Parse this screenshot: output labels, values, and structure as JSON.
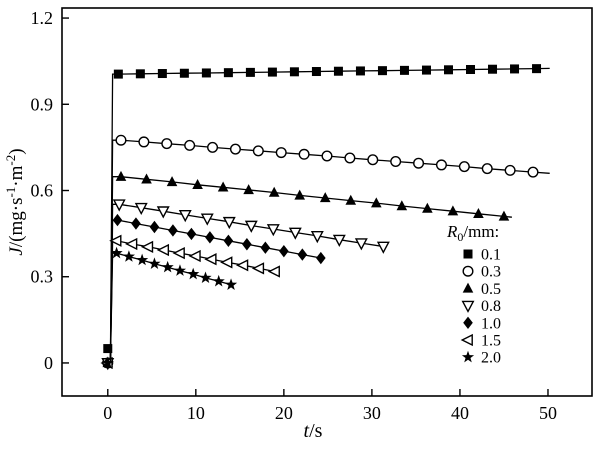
{
  "figure": {
    "background": "#ffffff",
    "axis_color": "#000000",
    "line_color": "#000000"
  },
  "chart_data": {
    "type": "line",
    "title": "",
    "xlabel": {
      "italic": "t",
      "rest": "/s"
    },
    "ylabel": {
      "italic": "J",
      "unit_open": "/(mg·s",
      "sup1": "-1",
      "unit_mid": "·m",
      "sup2": "-2",
      "unit_close": ")"
    },
    "xlim": [
      -5.2,
      55
    ],
    "ylim": [
      -0.115,
      1.235
    ],
    "xticks": [
      0,
      10,
      20,
      30,
      40,
      50
    ],
    "xtick_labels": [
      "0",
      "10",
      "20",
      "30",
      "40",
      "50"
    ],
    "yticks": [
      0,
      0.3,
      0.6,
      0.9,
      1.2
    ],
    "ytick_labels": [
      "0",
      "0.3",
      "0.6",
      "0.9",
      "1.2"
    ],
    "grid": false,
    "legend": {
      "title": {
        "italic": "R",
        "sub": "0",
        "rest": "/mm:"
      },
      "position": "lower-right-inside",
      "entries": [
        "0.1",
        "0.3",
        "0.5",
        "0.8",
        "1.0",
        "1.5",
        "2.0"
      ]
    },
    "series": [
      {
        "label": "0.1",
        "marker": "square",
        "filled": true,
        "origin": [
          0,
          0.05
        ],
        "rise_t": 0.3,
        "points": [
          [
            1.2,
            1.005
          ],
          [
            3.7,
            1.006
          ],
          [
            6.2,
            1.007
          ],
          [
            8.7,
            1.008
          ],
          [
            11.2,
            1.009
          ],
          [
            13.7,
            1.01
          ],
          [
            16.2,
            1.011
          ],
          [
            18.7,
            1.012
          ],
          [
            21.2,
            1.013
          ],
          [
            23.7,
            1.014
          ],
          [
            26.2,
            1.015
          ],
          [
            28.7,
            1.016
          ],
          [
            31.2,
            1.017
          ],
          [
            33.7,
            1.018
          ],
          [
            36.2,
            1.019
          ],
          [
            38.7,
            1.02
          ],
          [
            41.2,
            1.021
          ],
          [
            43.7,
            1.022
          ],
          [
            46.2,
            1.023
          ],
          [
            48.7,
            1.024
          ]
        ],
        "tail": [
          50.2,
          1.025
        ]
      },
      {
        "label": "0.3",
        "marker": "circle",
        "filled": false,
        "origin": [
          0,
          0
        ],
        "rise_t": 0.3,
        "points": [
          [
            1.5,
            0.775
          ],
          [
            4.1,
            0.769
          ],
          [
            6.7,
            0.763
          ],
          [
            9.3,
            0.757
          ],
          [
            11.9,
            0.75
          ],
          [
            14.5,
            0.744
          ],
          [
            17.1,
            0.738
          ],
          [
            19.7,
            0.732
          ],
          [
            22.3,
            0.726
          ],
          [
            24.9,
            0.72
          ],
          [
            27.5,
            0.713
          ],
          [
            30.1,
            0.707
          ],
          [
            32.7,
            0.701
          ],
          [
            35.3,
            0.695
          ],
          [
            37.9,
            0.689
          ],
          [
            40.5,
            0.683
          ],
          [
            43.1,
            0.676
          ],
          [
            45.7,
            0.67
          ],
          [
            48.3,
            0.664
          ]
        ],
        "tail": [
          50.2,
          0.66
        ]
      },
      {
        "label": "0.5",
        "marker": "triangle-up",
        "filled": true,
        "origin": [
          0,
          0
        ],
        "rise_t": 0.3,
        "points": [
          [
            1.5,
            0.648
          ],
          [
            4.4,
            0.639
          ],
          [
            7.3,
            0.63
          ],
          [
            10.2,
            0.62
          ],
          [
            13.1,
            0.611
          ],
          [
            16.0,
            0.602
          ],
          [
            18.9,
            0.593
          ],
          [
            21.8,
            0.583
          ],
          [
            24.7,
            0.574
          ],
          [
            27.6,
            0.565
          ],
          [
            30.5,
            0.556
          ],
          [
            33.4,
            0.546
          ],
          [
            36.3,
            0.537
          ],
          [
            39.2,
            0.528
          ],
          [
            42.1,
            0.519
          ],
          [
            45.0,
            0.51
          ]
        ],
        "tail": [
          45.9,
          0.507
        ]
      },
      {
        "label": "0.8",
        "marker": "triangle-down",
        "filled": false,
        "origin": [
          0,
          0
        ],
        "rise_t": 0.3,
        "points": [
          [
            1.3,
            0.552
          ],
          [
            3.8,
            0.54
          ],
          [
            6.3,
            0.528
          ],
          [
            8.8,
            0.515
          ],
          [
            11.3,
            0.503
          ],
          [
            13.8,
            0.491
          ],
          [
            16.3,
            0.478
          ],
          [
            18.8,
            0.466
          ],
          [
            21.3,
            0.454
          ],
          [
            23.8,
            0.442
          ],
          [
            26.3,
            0.429
          ],
          [
            28.8,
            0.417
          ],
          [
            31.3,
            0.405
          ]
        ],
        "tail": null
      },
      {
        "label": "1.0",
        "marker": "diamond",
        "filled": true,
        "origin": [
          0,
          0
        ],
        "rise_t": 0.3,
        "points": [
          [
            1.1,
            0.497
          ],
          [
            3.2,
            0.485
          ],
          [
            5.3,
            0.473
          ],
          [
            7.4,
            0.461
          ],
          [
            9.5,
            0.449
          ],
          [
            11.6,
            0.437
          ],
          [
            13.7,
            0.425
          ],
          [
            15.8,
            0.413
          ],
          [
            17.9,
            0.401
          ],
          [
            20.0,
            0.389
          ],
          [
            22.1,
            0.377
          ],
          [
            24.2,
            0.365
          ]
        ],
        "tail": null
      },
      {
        "label": "1.5",
        "marker": "triangle-left",
        "filled": false,
        "origin": [
          0,
          0
        ],
        "rise_t": 0.3,
        "points": [
          [
            1.0,
            0.425
          ],
          [
            2.8,
            0.414
          ],
          [
            4.6,
            0.404
          ],
          [
            6.4,
            0.393
          ],
          [
            8.2,
            0.382
          ],
          [
            10.0,
            0.372
          ],
          [
            11.8,
            0.361
          ],
          [
            13.6,
            0.35
          ],
          [
            15.4,
            0.34
          ],
          [
            17.2,
            0.329
          ],
          [
            19.0,
            0.318
          ]
        ],
        "tail": null
      },
      {
        "label": "2.0",
        "marker": "star",
        "filled": true,
        "origin": [
          0,
          0
        ],
        "rise_t": 0.3,
        "points": [
          [
            1.0,
            0.382
          ],
          [
            2.4,
            0.37
          ],
          [
            3.9,
            0.358
          ],
          [
            5.3,
            0.345
          ],
          [
            6.8,
            0.333
          ],
          [
            8.2,
            0.321
          ],
          [
            9.7,
            0.309
          ],
          [
            11.1,
            0.296
          ],
          [
            12.6,
            0.284
          ],
          [
            14.0,
            0.272
          ]
        ],
        "tail": null
      }
    ]
  }
}
